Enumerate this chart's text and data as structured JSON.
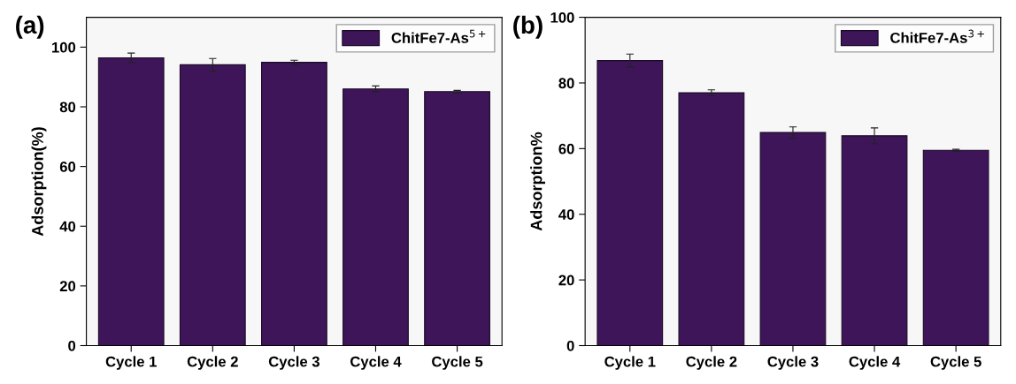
{
  "chart_data": [
    {
      "type": "bar",
      "title": "(a)",
      "ylabel": "Adsorption(%)",
      "categories": [
        "Cycle 1",
        "Cycle 2",
        "Cycle 3",
        "Cycle 4",
        "Cycle 5"
      ],
      "series": [
        {
          "name": "ChitFe7-As$^{5+}$",
          "color": "#3d1558",
          "values": [
            96.4,
            94.1,
            94.9,
            86.0,
            85.1
          ],
          "errors": [
            1.6,
            2.1,
            0.7,
            1.0,
            0.4
          ]
        }
      ],
      "ylim": [
        0,
        110
      ],
      "yticks": [
        0,
        20,
        40,
        60,
        80,
        100
      ],
      "legend": "top right",
      "grid": false
    },
    {
      "type": "bar",
      "title": "(b)",
      "ylabel": "Adsorption%",
      "categories": [
        "Cycle 1",
        "Cycle 2",
        "Cycle 3",
        "Cycle 4",
        "Cycle 5"
      ],
      "series": [
        {
          "name": "ChitFe7-As$^{3+}$",
          "color": "#3d1558",
          "values": [
            86.8,
            77.0,
            64.9,
            63.9,
            59.5
          ],
          "errors": [
            2.0,
            0.9,
            1.7,
            2.4,
            0.3
          ]
        }
      ],
      "ylim": [
        0,
        100
      ],
      "yticks": [
        0,
        20,
        40,
        60,
        80,
        100
      ],
      "legend": "top right",
      "grid": false
    }
  ]
}
